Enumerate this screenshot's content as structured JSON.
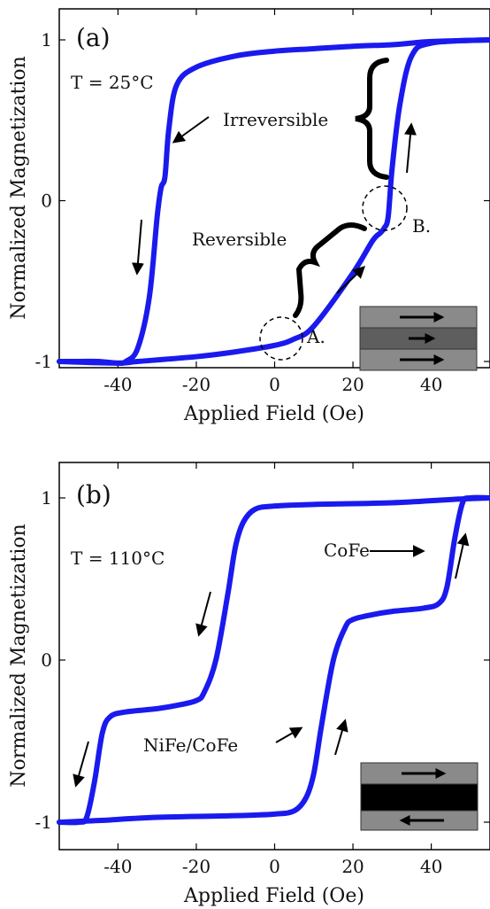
{
  "colors": {
    "curve": "#1a1aee",
    "axis": "#000000",
    "inset_light": "#8a8a8a",
    "inset_mid": "#5e5e5e",
    "inset_dark": "#000000"
  },
  "chart_data": [
    {
      "type": "line",
      "panel_label": "(a)",
      "xlabel": "Applied Field (Oe)",
      "ylabel": "Normalized Magnetization",
      "xlim": [
        -55,
        55
      ],
      "ylim": [
        -1.1,
        1.1
      ],
      "xticks": [
        -40,
        -20,
        0,
        20,
        40
      ],
      "xtick_labels": [
        "-40",
        "-20",
        "0",
        "20",
        "40"
      ],
      "yticks": [
        -1,
        0,
        1
      ],
      "ytick_labels": [
        "-1",
        "0",
        "1"
      ],
      "annotations": {
        "temperature": "T = 25°C",
        "irreversible": "Irreversible",
        "reversible": "Reversible",
        "point_a": "A.",
        "point_b": "B."
      },
      "series": [
        {
          "branch": "descending",
          "x": [
            55,
            40,
            35,
            30,
            20,
            10,
            0,
            -10,
            -20,
            -25,
            -27,
            -28,
            -29,
            -30,
            -32,
            -35,
            -38,
            -40,
            -45,
            -50,
            -55
          ],
          "y": [
            1.0,
            0.99,
            0.98,
            0.97,
            0.96,
            0.945,
            0.93,
            0.9,
            0.83,
            0.72,
            0.45,
            0.15,
            0.08,
            -0.1,
            -0.6,
            -0.92,
            -1.0,
            -1.01,
            -1.0,
            -1.0,
            -1.0
          ]
        },
        {
          "branch": "ascending",
          "x": [
            -55,
            -40,
            -35,
            -20,
            -10,
            0,
            5,
            10,
            20,
            25,
            27,
            28,
            29,
            30,
            32,
            35,
            40,
            55
          ],
          "y": [
            -1.0,
            -1.01,
            -1.0,
            -0.97,
            -0.94,
            -0.9,
            -0.86,
            -0.78,
            -0.45,
            -0.25,
            -0.2,
            -0.17,
            -0.1,
            0.2,
            0.6,
            0.9,
            0.98,
            1.0
          ]
        }
      ]
    },
    {
      "type": "line",
      "panel_label": "(b)",
      "xlabel": "Applied Field (Oe)",
      "ylabel": "Normalized Magnetization",
      "xlim": [
        -55,
        55
      ],
      "ylim": [
        -1.1,
        1.1
      ],
      "xticks": [
        -40,
        -20,
        0,
        20,
        40
      ],
      "xtick_labels": [
        "-40",
        "-20",
        "0",
        "20",
        "40"
      ],
      "yticks": [
        -1,
        0,
        1
      ],
      "ytick_labels": [
        "-1",
        "0",
        "1"
      ],
      "annotations": {
        "temperature": "T = 110°C",
        "cofe": "CoFe",
        "nife_cofe": "NiFe/CoFe"
      },
      "series": [
        {
          "branch": "descending",
          "x": [
            55,
            45,
            30,
            10,
            0,
            -5,
            -8,
            -10,
            -12,
            -15,
            -18,
            -20,
            -25,
            -30,
            -38,
            -42,
            -44,
            -46,
            -48,
            -50,
            -55
          ],
          "y": [
            1.0,
            0.99,
            0.97,
            0.96,
            0.95,
            0.93,
            0.85,
            0.7,
            0.4,
            0.0,
            -0.2,
            -0.25,
            -0.28,
            -0.3,
            -0.32,
            -0.35,
            -0.45,
            -0.75,
            -0.97,
            -1.0,
            -1.0
          ]
        },
        {
          "branch": "ascending",
          "x": [
            -55,
            -45,
            -30,
            -10,
            0,
            5,
            8,
            10,
            12,
            15,
            18,
            20,
            25,
            30,
            38,
            42,
            44,
            46,
            48,
            50,
            55
          ],
          "y": [
            -1.0,
            -0.99,
            -0.97,
            -0.96,
            -0.95,
            -0.93,
            -0.85,
            -0.7,
            -0.4,
            0.0,
            0.2,
            0.25,
            0.28,
            0.3,
            0.32,
            0.35,
            0.45,
            0.75,
            0.97,
            1.0,
            1.0
          ]
        }
      ]
    }
  ]
}
